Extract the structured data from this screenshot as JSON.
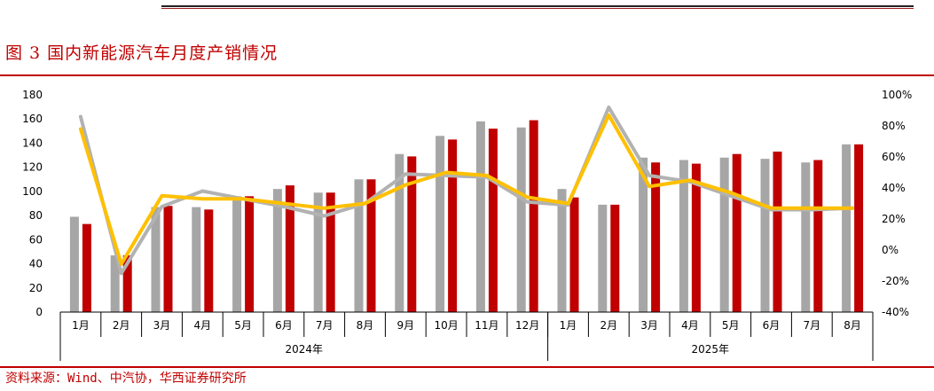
{
  "figure_title": "图 3 国内新能源汽车月度产销情况",
  "source_note": "资料来源：Wind、中汽协，华西证券研究所",
  "colors": {
    "production_bar": "#a6a6a6",
    "sales_bar": "#c00000",
    "production_yoy_line": "#b2b2b2",
    "sales_yoy_line": "#ffc000",
    "brand_red": "#c00000"
  },
  "chart_data": {
    "type": "bar",
    "categories": [
      "1月",
      "2月",
      "3月",
      "4月",
      "5月",
      "6月",
      "7月",
      "8月",
      "9月",
      "10月",
      "11月",
      "12月",
      "1月",
      "2月",
      "3月",
      "4月",
      "5月",
      "6月",
      "7月",
      "8月"
    ],
    "groups": [
      {
        "label": "2024年",
        "count": 12
      },
      {
        "label": "2025年",
        "count": 8
      }
    ],
    "series": [
      {
        "kind": "bar",
        "axis": "left",
        "values": [
          79,
          47,
          87,
          87,
          96,
          102,
          99,
          110,
          131,
          146,
          158,
          153,
          102,
          89,
          128,
          126,
          128,
          127,
          124,
          139
        ]
      },
      {
        "kind": "bar",
        "axis": "left",
        "values": [
          73,
          47,
          88,
          85,
          96,
          105,
          99,
          110,
          129,
          143,
          152,
          159,
          95,
          89,
          124,
          123,
          131,
          133,
          126,
          139
        ]
      },
      {
        "kind": "line",
        "axis": "right",
        "values": [
          86,
          -15,
          28,
          38,
          33,
          28,
          22,
          30,
          49,
          48,
          47,
          31,
          29,
          92,
          48,
          44,
          35,
          26,
          26,
          27
        ]
      },
      {
        "kind": "line",
        "axis": "right",
        "values": [
          78,
          -9,
          35,
          33,
          33,
          30,
          27,
          30,
          42,
          50,
          48,
          34,
          30,
          87,
          41,
          45,
          37,
          27,
          27,
          27
        ]
      }
    ],
    "left_axis": {
      "min": 0,
      "max": 180,
      "step": 20,
      "ticks": [
        "0",
        "20",
        "40",
        "60",
        "80",
        "100",
        "120",
        "140",
        "160",
        "180"
      ]
    },
    "right_axis": {
      "min": -40,
      "max": 100,
      "step": 20,
      "ticks": [
        "-40%",
        "-20%",
        "0%",
        "20%",
        "40%",
        "60%",
        "80%",
        "100%"
      ]
    },
    "gridlines": false,
    "legend": "none"
  }
}
